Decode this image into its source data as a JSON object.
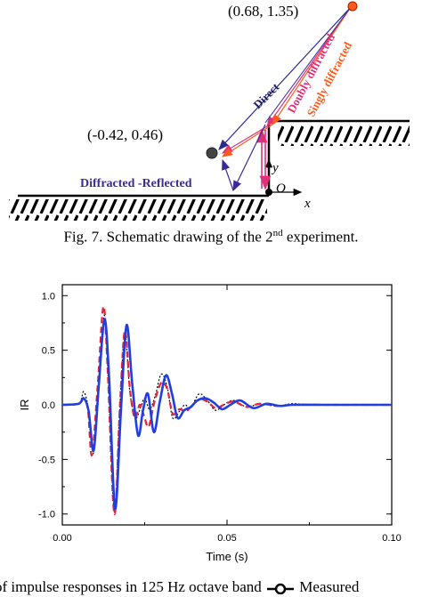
{
  "figure7": {
    "source_coord": "(0.68, 1.35)",
    "receiver_coord": "(-0.42, 0.46)",
    "label_direct": "Direct",
    "label_doubly": "Doubly diffracted",
    "label_singly": "Singly diffracted",
    "label_diff_refl": "Diffracted -Reflected",
    "axis_y": "y",
    "axis_x": "x",
    "origin": "O",
    "caption_pre": "Fig. 7. Schematic drawing of the 2",
    "caption_sup": "nd",
    "caption_post": " experiment.",
    "colors": {
      "direct": "#2b2b8c",
      "doubly": "#e0307a",
      "singly": "#ff5a1a",
      "diff_refl": "#3c2a9a",
      "source": "#ff5a1a",
      "receiver": "#333333"
    }
  },
  "chart_data": {
    "type": "line",
    "xlabel": "Time (s)",
    "ylabel": "IR",
    "xlim": [
      0.0,
      0.1
    ],
    "ylim": [
      -1.1,
      1.1
    ],
    "x_ticks": [
      "0.00",
      "0.05",
      "0.10"
    ],
    "y_ticks": [
      "1.0",
      "0.5",
      "0.0",
      "-0.5",
      "-1.0"
    ],
    "grid": false,
    "series": [
      {
        "style": "black dotted with circle markers",
        "color": "#000000",
        "x": [
          0.0,
          0.005,
          0.0065,
          0.008,
          0.0095,
          0.0115,
          0.0128,
          0.014,
          0.0158,
          0.0175,
          0.019,
          0.0205,
          0.0222,
          0.0238,
          0.025,
          0.0265,
          0.0282,
          0.03,
          0.0318,
          0.0335,
          0.0355,
          0.0372,
          0.039,
          0.0415,
          0.044,
          0.0465,
          0.049,
          0.052,
          0.056,
          0.06,
          0.065,
          0.07,
          0.075,
          0.08,
          0.085,
          0.09,
          0.095,
          0.1
        ],
        "y": [
          0.0,
          0.01,
          0.12,
          -0.05,
          -0.44,
          0.3,
          0.82,
          0.2,
          -0.98,
          0.0,
          0.65,
          0.12,
          -0.12,
          -0.02,
          0.06,
          -0.04,
          0.08,
          0.28,
          0.17,
          -0.12,
          -0.06,
          0.0,
          -0.03,
          0.1,
          0.04,
          -0.05,
          0.0,
          0.04,
          -0.02,
          0.01,
          -0.01,
          0.01,
          0.0,
          0.0,
          0.0,
          0.0,
          0.0,
          0.0
        ]
      },
      {
        "style": "red dashed",
        "color": "#e8203a",
        "x": [
          0.0,
          0.005,
          0.0065,
          0.0078,
          0.009,
          0.0108,
          0.0125,
          0.0138,
          0.0158,
          0.0175,
          0.019,
          0.0205,
          0.022,
          0.0235,
          0.0248,
          0.0262,
          0.028,
          0.03,
          0.0318,
          0.0335,
          0.0355,
          0.0375,
          0.039,
          0.0415,
          0.044,
          0.0465,
          0.049,
          0.052,
          0.056,
          0.06,
          0.065,
          0.07,
          0.08,
          0.09,
          0.1
        ],
        "y": [
          0.0,
          0.01,
          0.06,
          -0.05,
          -0.46,
          0.2,
          0.9,
          0.3,
          -1.0,
          0.0,
          0.68,
          0.15,
          -0.12,
          0.0,
          -0.1,
          -0.2,
          0.03,
          0.2,
          0.15,
          -0.08,
          -0.04,
          -0.06,
          -0.02,
          0.05,
          0.03,
          -0.03,
          0.0,
          0.03,
          -0.02,
          0.01,
          -0.01,
          0.0,
          0.0,
          0.0,
          0.0
        ]
      },
      {
        "style": "blue solid",
        "color": "#1f3fe0",
        "x": [
          0.0,
          0.005,
          0.0065,
          0.008,
          0.0095,
          0.011,
          0.0128,
          0.0142,
          0.016,
          0.0178,
          0.0195,
          0.0212,
          0.023,
          0.0245,
          0.026,
          0.0278,
          0.0296,
          0.0315,
          0.0333,
          0.035,
          0.037,
          0.039,
          0.041,
          0.0435,
          0.046,
          0.0485,
          0.051,
          0.054,
          0.058,
          0.062,
          0.066,
          0.07,
          0.08,
          0.09,
          0.1
        ],
        "y": [
          0.0,
          0.01,
          0.06,
          -0.06,
          -0.42,
          0.15,
          0.78,
          0.25,
          -0.95,
          -0.05,
          0.73,
          0.2,
          -0.28,
          -0.05,
          0.1,
          -0.25,
          0.03,
          0.27,
          0.1,
          -0.12,
          -0.05,
          -0.02,
          0.04,
          0.06,
          0.02,
          -0.04,
          0.0,
          0.04,
          -0.03,
          0.01,
          -0.01,
          0.0,
          0.0,
          0.0,
          0.0
        ]
      }
    ]
  },
  "caption8": {
    "text": "of impulse responses in 125 Hz octave band",
    "legend_text": "Measured"
  }
}
